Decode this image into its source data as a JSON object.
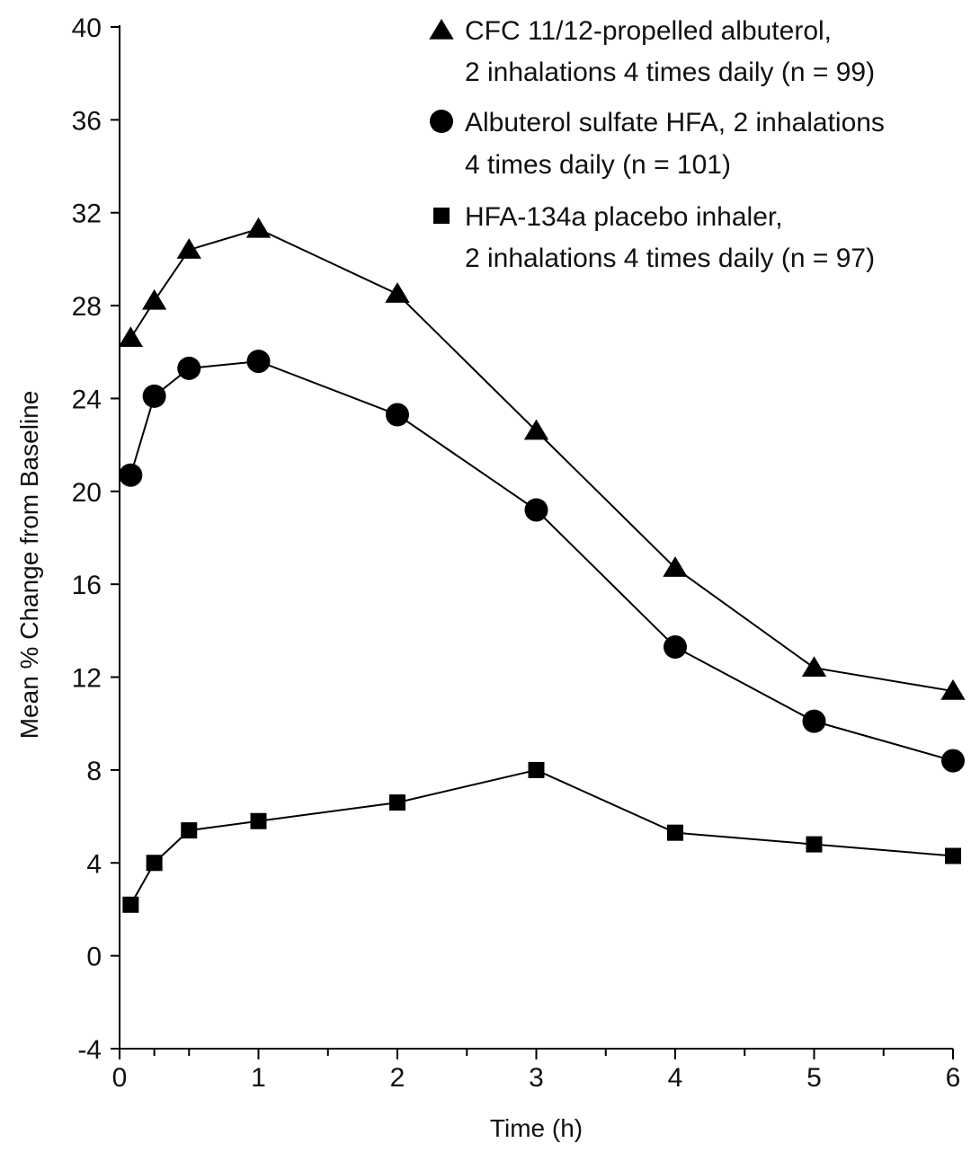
{
  "chart_data": {
    "type": "line",
    "title": "",
    "xlabel": "Time (h)",
    "ylabel": "Mean % Change from Baseline",
    "xlim": [
      0,
      6
    ],
    "ylim": [
      -4,
      40
    ],
    "x_ticks": [
      0,
      1,
      2,
      3,
      4,
      5,
      6
    ],
    "x_minor_ticks": [
      0.25,
      0.5,
      1.5,
      2.5,
      3.5,
      4.5,
      5.5
    ],
    "y_ticks": [
      -4,
      0,
      4,
      8,
      12,
      16,
      20,
      24,
      28,
      32,
      36,
      40
    ],
    "grid": false,
    "legend_position": "top-right",
    "series": [
      {
        "name": "CFC 11/12-propelled albuterol,",
        "name_line2": "2 inhalations 4 times daily (n = 99)",
        "marker": "triangle",
        "color": "#000000",
        "x": [
          0.08,
          0.25,
          0.5,
          1,
          2,
          3,
          4,
          5,
          6
        ],
        "values": [
          26.6,
          28.2,
          30.4,
          31.3,
          28.5,
          22.6,
          16.7,
          12.4,
          11.4
        ]
      },
      {
        "name": "Albuterol sulfate HFA, 2 inhalations",
        "name_line2": "4 times daily (n = 101)",
        "marker": "circle",
        "color": "#000000",
        "x": [
          0.08,
          0.25,
          0.5,
          1,
          2,
          3,
          4,
          5,
          6
        ],
        "values": [
          20.7,
          24.1,
          25.3,
          25.6,
          23.3,
          19.2,
          13.3,
          10.1,
          8.4
        ]
      },
      {
        "name": "HFA-134a placebo inhaler,",
        "name_line2": "2 inhalations 4 times daily (n = 97)",
        "marker": "square",
        "color": "#000000",
        "x": [
          0.08,
          0.25,
          0.5,
          1,
          2,
          3,
          4,
          5,
          6
        ],
        "values": [
          2.2,
          4.0,
          5.4,
          5.8,
          6.6,
          8.0,
          5.3,
          4.8,
          4.3
        ]
      }
    ]
  }
}
